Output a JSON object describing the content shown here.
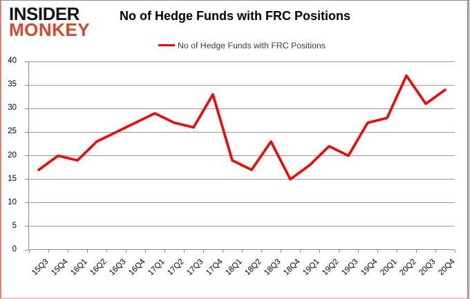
{
  "logo": {
    "line1": "INSIDER",
    "line2": "MONKEY"
  },
  "header": {
    "title": "No of Hedge Funds with FRC Positions"
  },
  "legend": {
    "label": "No of Hedge Funds with FRC Positions"
  },
  "colors": {
    "series_red": "#fe0000",
    "logo_red": "#d9472b",
    "grid_grey": "#9b9b9b",
    "axis_grey": "#8a8a8a",
    "frame_grey": "#8e8e8e",
    "frame_pink": "#f0c7c1"
  },
  "chart_data": {
    "type": "line",
    "title": "No of Hedge Funds with FRC Positions",
    "categories": [
      "15Q3",
      "15Q4",
      "16Q1",
      "16Q2",
      "16Q3",
      "16Q4",
      "17Q1",
      "17Q2",
      "17Q3",
      "17Q4",
      "18Q1",
      "18Q2",
      "18Q3",
      "18Q4",
      "19Q1",
      "19Q2",
      "19Q3",
      "19Q4",
      "20Q1",
      "20Q2",
      "20Q3",
      "20Q4"
    ],
    "series": [
      {
        "name": "No of Hedge Funds with FRC Positions",
        "values": [
          17,
          20,
          19,
          23,
          25,
          27,
          29,
          27,
          26,
          33,
          19,
          17,
          23,
          15,
          18,
          22,
          20,
          27,
          28,
          37,
          31,
          34
        ]
      }
    ],
    "xlabel": "",
    "ylabel": "",
    "ylim": [
      0,
      40
    ],
    "ytick_interval": 5,
    "grid": true,
    "legend_position": "top-center",
    "line_color": "#fe0000",
    "line_width": 3.6
  }
}
